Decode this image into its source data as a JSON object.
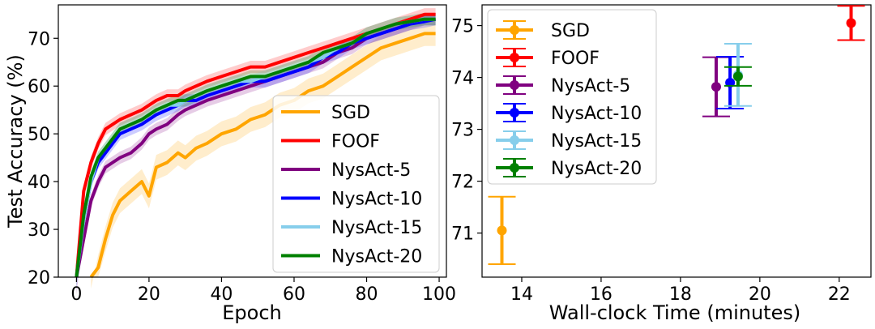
{
  "chart_data": [
    {
      "type": "line",
      "xlabel": "Epoch",
      "ylabel": "Test Accuracy (%)",
      "xlim": [
        -5,
        102
      ],
      "ylim": [
        20,
        77
      ],
      "xticks": [
        0,
        20,
        40,
        60,
        80,
        100
      ],
      "yticks": [
        20,
        30,
        40,
        50,
        60,
        70
      ],
      "legend_position": "lower-right",
      "x": [
        0,
        2,
        4,
        6,
        8,
        10,
        12,
        15,
        18,
        20,
        22,
        25,
        28,
        30,
        33,
        36,
        40,
        44,
        48,
        52,
        56,
        60,
        64,
        68,
        72,
        76,
        80,
        84,
        88,
        92,
        96,
        99
      ],
      "series": [
        {
          "name": "SGD",
          "color": "#ffa500",
          "values": [
            null,
            null,
            15,
            22,
            28,
            33,
            36,
            38,
            40,
            37,
            43,
            44,
            46,
            45,
            47,
            48,
            50,
            51,
            53,
            54,
            56,
            57,
            59,
            60,
            62,
            64,
            66,
            68,
            69,
            70,
            71,
            71
          ]
        },
        {
          "name": "FOOF",
          "color": "#ff0000",
          "values": [
            18,
            38,
            44,
            48,
            51,
            52,
            53,
            54,
            55,
            56,
            57,
            58,
            58,
            59,
            60,
            61,
            62,
            63,
            64,
            64,
            65,
            66,
            67,
            68,
            69,
            70,
            71,
            72,
            73,
            74,
            75,
            75
          ]
        },
        {
          "name": "NysAct-5",
          "color": "#800080",
          "values": [
            15,
            28,
            36,
            40,
            43,
            44,
            45,
            46,
            48,
            50,
            51,
            52,
            54,
            55,
            56,
            57,
            58,
            59,
            60,
            61,
            62,
            63,
            64,
            65,
            67,
            68,
            70,
            71,
            72,
            73,
            74,
            74
          ]
        },
        {
          "name": "NysAct-10",
          "color": "#0000ff",
          "values": [
            16,
            32,
            40,
            44,
            46,
            48,
            50,
            51,
            52,
            53,
            54,
            55,
            56,
            57,
            57,
            58,
            59,
            60,
            61,
            61,
            62,
            63,
            64,
            66,
            67,
            69,
            70,
            71,
            72,
            73,
            73.5,
            74
          ]
        },
        {
          "name": "NysAct-15",
          "color": "#87ceeb",
          "values": [
            16,
            32,
            40,
            45,
            47,
            49,
            51,
            52,
            53,
            54,
            55,
            56,
            56,
            57,
            58,
            59,
            60,
            61,
            61,
            62,
            63,
            64,
            65,
            66,
            68,
            69,
            71,
            72,
            73,
            73.5,
            74,
            74
          ]
        },
        {
          "name": "NysAct-20",
          "color": "#008000",
          "values": [
            17,
            33,
            41,
            45,
            47,
            49,
            51,
            52,
            53,
            54,
            55,
            56,
            57,
            57,
            58,
            59,
            60,
            61,
            62,
            62,
            63,
            64,
            65,
            67,
            68,
            69,
            71,
            72,
            73,
            73.5,
            74,
            74
          ]
        }
      ]
    },
    {
      "type": "scatter",
      "xlabel": "Wall-clock Time (minutes)",
      "ylabel": "",
      "xlim": [
        13,
        22.8
      ],
      "ylim": [
        70.15,
        75.4
      ],
      "xticks": [
        14,
        16,
        18,
        20,
        22
      ],
      "yticks": [
        71,
        72,
        73,
        74,
        75
      ],
      "legend_position": "upper-left",
      "points": [
        {
          "name": "SGD",
          "color": "#ffa500",
          "x": 13.5,
          "y": 71.05,
          "yerr": 0.65
        },
        {
          "name": "FOOF",
          "color": "#ff0000",
          "x": 22.3,
          "y": 75.05,
          "yerr": 0.33
        },
        {
          "name": "NysAct-5",
          "color": "#800080",
          "x": 18.9,
          "y": 73.82,
          "yerr": 0.57
        },
        {
          "name": "NysAct-10",
          "color": "#0000ff",
          "x": 19.25,
          "y": 73.9,
          "yerr": 0.5
        },
        {
          "name": "NysAct-15",
          "color": "#87ceeb",
          "x": 19.45,
          "y": 74.05,
          "yerr": 0.6
        },
        {
          "name": "NysAct-20",
          "color": "#008000",
          "x": 19.45,
          "y": 74.02,
          "yerr": 0.18
        }
      ]
    }
  ]
}
